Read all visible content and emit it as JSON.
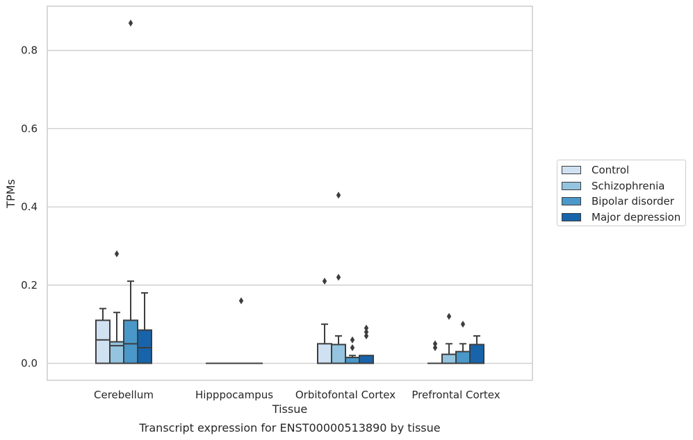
{
  "chart_data": {
    "type": "box",
    "title": "Transcript expression for ENST00000513890 by tissue",
    "xlabel": "Tissue",
    "ylabel": "TPMs",
    "ylim": [
      -0.043,
      0.915
    ],
    "yticks": [
      0.0,
      0.2,
      0.4,
      0.6,
      0.8
    ],
    "ytick_labels": [
      "0.0",
      "0.2",
      "0.4",
      "0.6",
      "0.8"
    ],
    "grid": "horizontal",
    "legend_position": "right",
    "categories": [
      "Cerebellum",
      "Hipppocampus",
      "Orbitofontal Cortex",
      "Prefrontal Cortex"
    ],
    "series": [
      {
        "name": "Control",
        "color": "#d0e1f2",
        "boxes": [
          {
            "q1": 0.0,
            "median": 0.06,
            "q3": 0.11,
            "whisker_low": 0.0,
            "whisker_high": 0.14,
            "outliers": []
          },
          {
            "q1": 0.0,
            "median": 0.0,
            "q3": 0.0,
            "whisker_low": 0.0,
            "whisker_high": 0.0,
            "outliers": []
          },
          {
            "q1": 0.0,
            "median": 0.0,
            "q3": 0.05,
            "whisker_low": 0.0,
            "whisker_high": 0.1,
            "outliers": [
              0.21
            ]
          },
          {
            "q1": 0.0,
            "median": 0.0,
            "q3": 0.0,
            "whisker_low": 0.0,
            "whisker_high": 0.0,
            "outliers": [
              0.04,
              0.05
            ]
          }
        ]
      },
      {
        "name": "Schizophrenia",
        "color": "#94c4df",
        "boxes": [
          {
            "q1": 0.0,
            "median": 0.045,
            "q3": 0.055,
            "whisker_low": 0.0,
            "whisker_high": 0.13,
            "outliers": [
              0.28
            ]
          },
          {
            "q1": 0.0,
            "median": 0.0,
            "q3": 0.0,
            "whisker_low": 0.0,
            "whisker_high": 0.0,
            "outliers": []
          },
          {
            "q1": 0.0,
            "median": 0.0,
            "q3": 0.048,
            "whisker_low": 0.0,
            "whisker_high": 0.07,
            "outliers": [
              0.22,
              0.43
            ]
          },
          {
            "q1": 0.0,
            "median": 0.0,
            "q3": 0.023,
            "whisker_low": 0.0,
            "whisker_high": 0.05,
            "outliers": [
              0.12
            ]
          }
        ]
      },
      {
        "name": "Bipolar disorder",
        "color": "#4a98c9",
        "boxes": [
          {
            "q1": 0.0,
            "median": 0.05,
            "q3": 0.11,
            "whisker_low": 0.0,
            "whisker_high": 0.21,
            "outliers": [
              0.87
            ]
          },
          {
            "q1": 0.0,
            "median": 0.0,
            "q3": 0.0,
            "whisker_low": 0.0,
            "whisker_high": 0.0,
            "outliers": [
              0.16
            ]
          },
          {
            "q1": 0.0,
            "median": 0.0,
            "q3": 0.015,
            "whisker_low": 0.0,
            "whisker_high": 0.02,
            "outliers": [
              0.04,
              0.06
            ]
          },
          {
            "q1": 0.0,
            "median": 0.0,
            "q3": 0.03,
            "whisker_low": 0.0,
            "whisker_high": 0.05,
            "outliers": [
              0.1
            ]
          }
        ]
      },
      {
        "name": "Major depression",
        "color": "#1764ab",
        "boxes": [
          {
            "q1": 0.0,
            "median": 0.04,
            "q3": 0.085,
            "whisker_low": 0.0,
            "whisker_high": 0.18,
            "outliers": []
          },
          {
            "q1": 0.0,
            "median": 0.0,
            "q3": 0.0,
            "whisker_low": 0.0,
            "whisker_high": 0.0,
            "outliers": []
          },
          {
            "q1": 0.0,
            "median": 0.0,
            "q3": 0.02,
            "whisker_low": 0.0,
            "whisker_high": 0.02,
            "outliers": [
              0.07,
              0.08,
              0.09
            ]
          },
          {
            "q1": 0.0,
            "median": 0.0,
            "q3": 0.048,
            "whisker_low": 0.0,
            "whisker_high": 0.07,
            "outliers": []
          }
        ]
      }
    ]
  }
}
